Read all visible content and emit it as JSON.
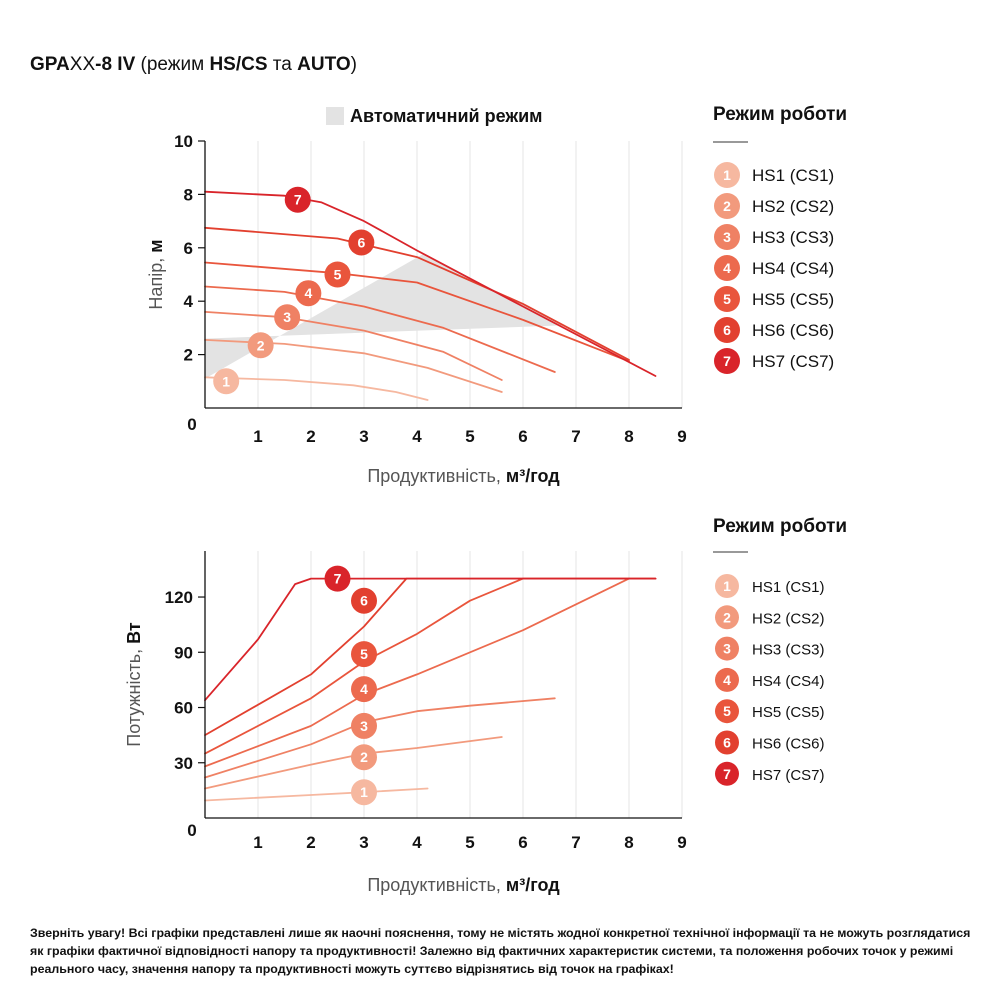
{
  "header": {
    "title_parts": [
      {
        "text": "GPA",
        "bold": true
      },
      {
        "text": "XX",
        "bold": false
      },
      {
        "text": "-8 IV",
        "bold": true
      },
      {
        "text": " (режим ",
        "bold": false
      },
      {
        "text": "HS/CS",
        "bold": true
      },
      {
        "text": " та ",
        "bold": false
      },
      {
        "text": "AUTO",
        "bold": true
      },
      {
        "text": ")",
        "bold": false
      }
    ]
  },
  "legend": {
    "title": "Режим роботи",
    "items": [
      {
        "num": "1",
        "label": "HS1 (CS1)",
        "color": "#f6b8a0"
      },
      {
        "num": "2",
        "label": "HS2 (CS2)",
        "color": "#f29a7d"
      },
      {
        "num": "3",
        "label": "HS3 (CS3)",
        "color": "#ef8164"
      },
      {
        "num": "4",
        "label": "HS4 (CS4)",
        "color": "#ec6a4e"
      },
      {
        "num": "5",
        "label": "HS5 (CS5)",
        "color": "#e9553c"
      },
      {
        "num": "6",
        "label": "HS6 (CS6)",
        "color": "#e2402f"
      },
      {
        "num": "7",
        "label": "HS7 (CS7)",
        "color": "#d9242a"
      }
    ]
  },
  "disclaimer": "Зверніть увагу! Всі графіки представлені лише як наочні пояснення, тому не містять жодної конкретної технічної інформації та не можуть розглядатися як графіки фактичної відповідності напору та продуктивності! Залежно від фактичних характеристик системи, та положення робочих точок у режимі реального часу, значення напору та продуктивності можуть суттєво відрізнятись від точок на графіках!",
  "chart_data": [
    {
      "type": "line",
      "xlabel": {
        "plain": "Продуктивність, ",
        "bold": "м³/год"
      },
      "ylabel": {
        "plain": "Напір, ",
        "bold": "м"
      },
      "xlim": [
        0,
        9
      ],
      "ylim": [
        0,
        10
      ],
      "xticks": [
        "0",
        "1",
        "2",
        "3",
        "4",
        "5",
        "6",
        "7",
        "8",
        "9"
      ],
      "yticks": [
        {
          "v": 2,
          "label": "2"
        },
        {
          "v": 4,
          "label": "4"
        },
        {
          "v": 6,
          "label": "6"
        },
        {
          "v": 8,
          "label": "8"
        },
        {
          "v": 10,
          "label": "10"
        }
      ],
      "grid": "vertical",
      "auto_region": {
        "label": "Автоматичний режим",
        "polygon": [
          [
            0,
            1.1
          ],
          [
            4.1,
            5.75
          ],
          [
            6.8,
            3.1
          ],
          [
            0,
            2.6
          ]
        ]
      },
      "series": [
        {
          "name": "1",
          "points": [
            [
              0,
              1.15
            ],
            [
              1.5,
              1.05
            ],
            [
              2.8,
              0.85
            ],
            [
              3.6,
              0.6
            ],
            [
              4.2,
              0.3
            ]
          ],
          "marker": [
            0.4,
            1.0
          ]
        },
        {
          "name": "2",
          "points": [
            [
              0,
              2.55
            ],
            [
              1.5,
              2.4
            ],
            [
              3,
              2.05
            ],
            [
              4.2,
              1.5
            ],
            [
              5.6,
              0.6
            ]
          ],
          "marker": [
            1.05,
            2.35
          ]
        },
        {
          "name": "3",
          "points": [
            [
              0,
              3.6
            ],
            [
              1.5,
              3.4
            ],
            [
              3,
              2.9
            ],
            [
              4.5,
              2.1
            ],
            [
              5.6,
              1.05
            ]
          ],
          "marker": [
            1.55,
            3.4
          ]
        },
        {
          "name": "4",
          "points": [
            [
              0,
              4.55
            ],
            [
              1.5,
              4.35
            ],
            [
              3,
              3.8
            ],
            [
              4.5,
              3.0
            ],
            [
              6.6,
              1.35
            ]
          ],
          "marker": [
            1.95,
            4.3
          ]
        },
        {
          "name": "5",
          "points": [
            [
              0,
              5.45
            ],
            [
              2.5,
              5.05
            ],
            [
              4,
              4.7
            ],
            [
              6,
              3.3
            ],
            [
              8,
              1.75
            ]
          ],
          "marker": [
            2.5,
            5.0
          ]
        },
        {
          "name": "6",
          "points": [
            [
              0,
              6.75
            ],
            [
              2.5,
              6.35
            ],
            [
              4,
              5.65
            ],
            [
              6,
              3.9
            ],
            [
              8,
              1.8
            ]
          ],
          "marker": [
            2.95,
            6.2
          ]
        },
        {
          "name": "7",
          "points": [
            [
              0,
              8.1
            ],
            [
              1.5,
              7.95
            ],
            [
              2.2,
              7.7
            ],
            [
              3,
              7.0
            ],
            [
              4,
              5.9
            ],
            [
              6,
              3.8
            ],
            [
              8.5,
              1.2
            ]
          ],
          "marker": [
            1.75,
            7.8
          ]
        }
      ]
    },
    {
      "type": "line",
      "xlabel": {
        "plain": "Продуктивність, ",
        "bold": "м³/год"
      },
      "ylabel": {
        "plain": "Потужність, ",
        "bold": "Вт"
      },
      "xlim": [
        0,
        9
      ],
      "ylim": [
        0,
        145
      ],
      "xticks": [
        "0",
        "1",
        "2",
        "3",
        "4",
        "5",
        "6",
        "7",
        "8",
        "9"
      ],
      "yticks": [
        {
          "v": 30,
          "label": "30"
        },
        {
          "v": 60,
          "label": "60"
        },
        {
          "v": 90,
          "label": "90"
        },
        {
          "v": 120,
          "label": "120"
        }
      ],
      "grid": "vertical",
      "series": [
        {
          "name": "1",
          "points": [
            [
              0,
              9.5
            ],
            [
              2,
              12.5
            ],
            [
              3,
              14
            ],
            [
              4.2,
              16
            ]
          ],
          "marker": [
            3.0,
            14.0
          ]
        },
        {
          "name": "2",
          "points": [
            [
              0,
              16
            ],
            [
              2,
              29
            ],
            [
              3,
              35
            ],
            [
              4,
              38
            ],
            [
              5.6,
              44
            ]
          ],
          "marker": [
            3.0,
            33.0
          ]
        },
        {
          "name": "3",
          "points": [
            [
              0,
              22
            ],
            [
              2,
              40
            ],
            [
              3,
              52
            ],
            [
              4,
              58
            ],
            [
              5,
              61
            ],
            [
              6.6,
              65
            ]
          ],
          "marker": [
            3.0,
            50.0
          ]
        },
        {
          "name": "4",
          "points": [
            [
              0,
              28
            ],
            [
              2,
              50
            ],
            [
              3,
              67
            ],
            [
              4,
              78
            ],
            [
              6,
              102
            ],
            [
              8,
              130
            ]
          ],
          "marker": [
            3.0,
            70.0
          ]
        },
        {
          "name": "5",
          "points": [
            [
              0,
              35
            ],
            [
              2,
              65
            ],
            [
              3,
              85
            ],
            [
              4,
              100
            ],
            [
              5,
              118
            ],
            [
              6,
              130
            ],
            [
              8.5,
              130
            ]
          ],
          "marker": [
            3.0,
            89.0
          ]
        },
        {
          "name": "6",
          "points": [
            [
              0,
              45
            ],
            [
              2,
              78
            ],
            [
              3,
              104
            ],
            [
              3.8,
              130
            ],
            [
              8.5,
              130
            ]
          ],
          "marker": [
            3.0,
            118.0
          ]
        },
        {
          "name": "7",
          "points": [
            [
              0,
              64
            ],
            [
              1,
              97
            ],
            [
              1.7,
              127
            ],
            [
              2,
              130
            ],
            [
              8.5,
              130
            ]
          ],
          "marker": [
            2.5,
            130.0
          ]
        }
      ]
    }
  ]
}
